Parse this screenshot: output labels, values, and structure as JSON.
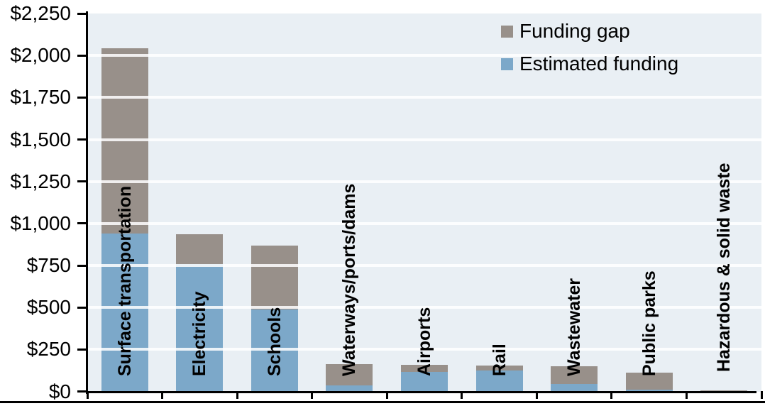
{
  "chart_data": {
    "type": "bar",
    "stacked": true,
    "title": "",
    "categories": [
      "Surface transportation",
      "Electricity",
      "Schools",
      "Waterways/ports/dams",
      "Airports",
      "Rail",
      "Wastewater",
      "Public parks",
      "Hazardous & solid waste"
    ],
    "series": [
      {
        "name": "Estimated funding",
        "color": "#7ca8c9",
        "values": [
          941,
          757,
          490,
          38,
          115,
          125,
          45,
          12,
          4
        ]
      },
      {
        "name": "Funding gap",
        "color": "#98908a",
        "values": [
          1101,
          177,
          380,
          124,
          42,
          29,
          105,
          102,
          3
        ]
      }
    ],
    "totals": [
      2042,
      934,
      870,
      162,
      157,
      154,
      150,
      114,
      7
    ],
    "y_axis": {
      "min": 0,
      "max": 2250,
      "step": 250,
      "tick_labels": [
        "$2,250",
        "$2,000",
        "$1,750",
        "$1,500",
        "$1,250",
        "$1,000",
        "$750",
        "$500",
        "$250",
        "$0"
      ]
    },
    "legend": {
      "position": "top-right",
      "items": [
        {
          "label": "Funding gap"
        },
        {
          "label": "Estimated funding"
        }
      ]
    },
    "grid": true,
    "plot_background": "#e9eff4",
    "gridline_color": "#ffffff",
    "axis_color": "#000000"
  }
}
